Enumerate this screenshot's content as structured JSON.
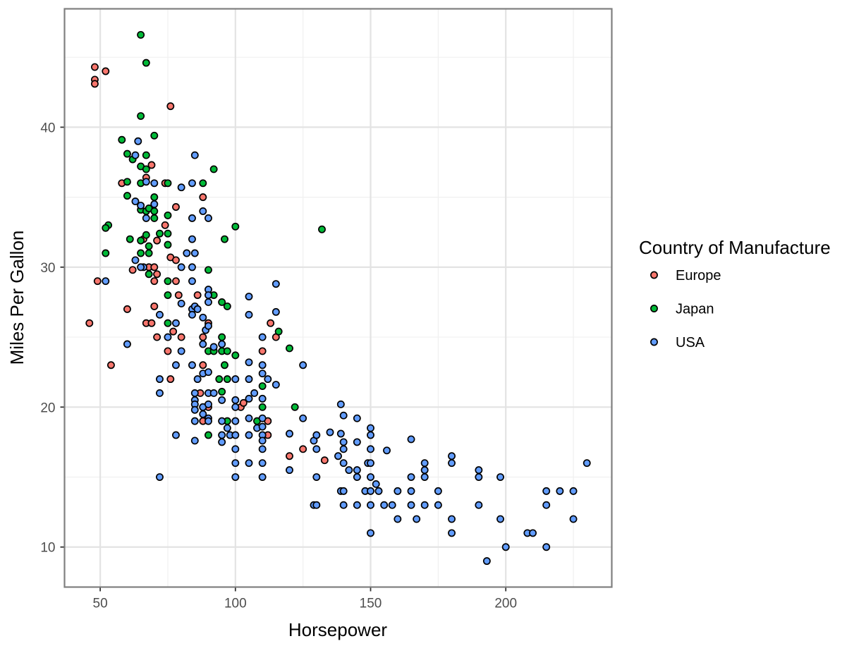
{
  "chart_data": {
    "type": "scatter",
    "title": "",
    "xlabel": "Horsepower",
    "ylabel": "Miles Per Gallon",
    "xlim": [
      36.8,
      239.2
    ],
    "ylim": [
      7.14,
      48.46
    ],
    "xticks": [
      50,
      100,
      150,
      200
    ],
    "yticks": [
      10,
      20,
      30,
      40
    ],
    "grid": true,
    "legend": {
      "title": "Country of Manufacture",
      "position": "right"
    },
    "series": [
      {
        "name": "Europe",
        "color": "#f8766d",
        "points": [
          [
            48,
            44.3
          ],
          [
            48,
            43.4
          ],
          [
            48,
            43.1
          ],
          [
            52,
            44.0
          ],
          [
            76,
            41.5
          ],
          [
            58,
            36.0
          ],
          [
            67,
            36.4
          ],
          [
            69,
            37.3
          ],
          [
            74,
            36.0
          ],
          [
            88,
            35.0
          ],
          [
            74,
            33.0
          ],
          [
            78,
            34.3
          ],
          [
            66,
            32.0
          ],
          [
            71,
            31.9
          ],
          [
            76,
            30.7
          ],
          [
            78,
            30.5
          ],
          [
            49,
            29.0
          ],
          [
            62,
            29.8
          ],
          [
            68,
            30.0
          ],
          [
            70,
            30.0
          ],
          [
            71,
            29.5
          ],
          [
            70,
            29.0
          ],
          [
            78,
            29.0
          ],
          [
            46,
            26.0
          ],
          [
            60,
            27.0
          ],
          [
            67,
            26.0
          ],
          [
            69,
            26.0
          ],
          [
            70,
            27.2
          ],
          [
            79,
            28.0
          ],
          [
            86,
            28.0
          ],
          [
            90,
            26.0
          ],
          [
            113,
            26.0
          ],
          [
            54,
            23.0
          ],
          [
            71,
            25.0
          ],
          [
            75,
            24.0
          ],
          [
            77,
            25.4
          ],
          [
            80,
            25.0
          ],
          [
            88,
            25.0
          ],
          [
            88,
            23.0
          ],
          [
            115,
            25.0
          ],
          [
            110,
            24.0
          ],
          [
            102,
            20.0
          ],
          [
            76,
            22.0
          ],
          [
            87,
            21.0
          ],
          [
            88,
            20.0
          ],
          [
            90,
            20.0
          ],
          [
            103,
            20.3
          ],
          [
            88,
            19.0
          ],
          [
            112,
            19.0
          ],
          [
            112,
            18.0
          ],
          [
            120,
            16.5
          ],
          [
            125,
            17.0
          ],
          [
            133,
            16.2
          ]
        ]
      },
      {
        "name": "Japan",
        "color": "#00ba38",
        "points": [
          [
            65,
            46.6
          ],
          [
            67,
            44.6
          ],
          [
            65,
            40.8
          ],
          [
            58,
            39.1
          ],
          [
            70,
            39.4
          ],
          [
            60,
            38.1
          ],
          [
            62,
            37.7
          ],
          [
            65,
            37.2
          ],
          [
            67,
            37.0
          ],
          [
            67,
            38.0
          ],
          [
            92,
            37.0
          ],
          [
            60,
            36.1
          ],
          [
            65,
            36.0
          ],
          [
            75,
            36.0
          ],
          [
            88,
            36.0
          ],
          [
            70,
            35.0
          ],
          [
            60,
            35.1
          ],
          [
            53,
            33.0
          ],
          [
            52,
            32.8
          ],
          [
            65,
            34.1
          ],
          [
            67,
            34.0
          ],
          [
            68,
            34.2
          ],
          [
            70,
            34.0
          ],
          [
            70,
            33.5
          ],
          [
            75,
            33.7
          ],
          [
            61,
            32.0
          ],
          [
            65,
            31.9
          ],
          [
            67,
            32.3
          ],
          [
            68,
            31.5
          ],
          [
            72,
            32.4
          ],
          [
            75,
            32.4
          ],
          [
            75,
            31.6
          ],
          [
            100,
            32.9
          ],
          [
            132,
            32.7
          ],
          [
            96,
            32.0
          ],
          [
            52,
            31.0
          ],
          [
            65,
            31.0
          ],
          [
            68,
            31.0
          ],
          [
            68,
            29.5
          ],
          [
            75,
            29.0
          ],
          [
            90,
            29.8
          ],
          [
            75,
            28.0
          ],
          [
            92,
            28.0
          ],
          [
            95,
            27.5
          ],
          [
            97,
            27.2
          ],
          [
            75,
            26.0
          ],
          [
            90,
            24.0
          ],
          [
            92,
            24.0
          ],
          [
            95,
            24.0
          ],
          [
            97,
            24.0
          ],
          [
            100,
            23.7
          ],
          [
            96,
            23.0
          ],
          [
            95,
            25.0
          ],
          [
            116,
            25.4
          ],
          [
            120,
            24.2
          ],
          [
            94,
            22.0
          ],
          [
            97,
            22.0
          ],
          [
            95,
            21.1
          ],
          [
            110,
            21.5
          ],
          [
            110,
            20.0
          ],
          [
            122,
            20.0
          ],
          [
            88,
            20.0
          ],
          [
            97,
            19.0
          ],
          [
            108,
            19.0
          ],
          [
            90,
            18.0
          ]
        ]
      },
      {
        "name": "USA",
        "color": "#619cff",
        "points": [
          [
            64,
            39.0
          ],
          [
            63,
            38.0
          ],
          [
            85,
            38.0
          ],
          [
            67,
            36.1
          ],
          [
            70,
            36.0
          ],
          [
            80,
            35.7
          ],
          [
            84,
            36.0
          ],
          [
            63,
            34.7
          ],
          [
            65,
            34.4
          ],
          [
            66,
            30.0
          ],
          [
            67,
            33.5
          ],
          [
            70,
            34.5
          ],
          [
            84,
            33.5
          ],
          [
            88,
            34.0
          ],
          [
            90,
            33.5
          ],
          [
            52,
            29.0
          ],
          [
            63,
            30.5
          ],
          [
            65,
            30.0
          ],
          [
            72,
            26.6
          ],
          [
            80,
            30.0
          ],
          [
            82,
            31.0
          ],
          [
            84,
            32.0
          ],
          [
            84,
            30.0
          ],
          [
            85,
            31.0
          ],
          [
            84,
            29.0
          ],
          [
            90,
            27.5
          ],
          [
            90,
            28.4
          ],
          [
            90,
            28.0
          ],
          [
            60,
            24.5
          ],
          [
            75,
            25.0
          ],
          [
            78,
            26.0
          ],
          [
            80,
            27.4
          ],
          [
            84,
            27.0
          ],
          [
            84,
            26.6
          ],
          [
            85,
            27.2
          ],
          [
            86,
            27.0
          ],
          [
            88,
            26.4
          ],
          [
            88,
            24.5
          ],
          [
            89,
            25.5
          ],
          [
            90,
            25.8
          ],
          [
            92,
            24.3
          ],
          [
            95,
            24.5
          ],
          [
            105,
            27.9
          ],
          [
            105,
            26.6
          ],
          [
            115,
            28.8
          ],
          [
            115,
            26.8
          ],
          [
            72,
            22.0
          ],
          [
            72,
            21.0
          ],
          [
            78,
            23.0
          ],
          [
            80,
            24.0
          ],
          [
            84,
            23.0
          ],
          [
            86,
            22.0
          ],
          [
            88,
            22.4
          ],
          [
            90,
            22.5
          ],
          [
            85,
            21.0
          ],
          [
            85,
            20.5
          ],
          [
            85,
            20.2
          ],
          [
            85,
            19.8
          ],
          [
            85,
            19.0
          ],
          [
            85,
            17.6
          ],
          [
            88,
            20.0
          ],
          [
            88,
            19.5
          ],
          [
            90,
            21.0
          ],
          [
            90,
            20.2
          ],
          [
            90,
            19.2
          ],
          [
            90,
            19.0
          ],
          [
            92,
            21.0
          ],
          [
            95,
            20.5
          ],
          [
            95,
            19.0
          ],
          [
            95,
            18.0
          ],
          [
            95,
            17.5
          ],
          [
            97,
            18.5
          ],
          [
            98,
            18.0
          ],
          [
            100,
            22.0
          ],
          [
            100,
            20.5
          ],
          [
            100,
            20.0
          ],
          [
            100,
            19.0
          ],
          [
            100,
            18.0
          ],
          [
            100,
            17.0
          ],
          [
            100,
            16.0
          ],
          [
            100,
            15.0
          ],
          [
            78,
            18.0
          ],
          [
            72,
            15.0
          ],
          [
            105,
            23.2
          ],
          [
            105,
            22.0
          ],
          [
            105,
            20.6
          ],
          [
            105,
            19.2
          ],
          [
            105,
            18.0
          ],
          [
            105,
            16.0
          ],
          [
            107,
            21.0
          ],
          [
            108,
            18.5
          ],
          [
            110,
            25.0
          ],
          [
            110,
            23.0
          ],
          [
            110,
            22.4
          ],
          [
            110,
            20.6
          ],
          [
            110,
            19.2
          ],
          [
            110,
            18.6
          ],
          [
            110,
            18.0
          ],
          [
            110,
            17.6
          ],
          [
            110,
            17.0
          ],
          [
            110,
            16.0
          ],
          [
            110,
            15.0
          ],
          [
            112,
            22.0
          ],
          [
            115,
            21.6
          ],
          [
            120,
            18.1
          ],
          [
            120,
            15.5
          ],
          [
            125,
            23.0
          ],
          [
            125,
            19.2
          ],
          [
            129,
            17.6
          ],
          [
            129,
            13.0
          ],
          [
            130,
            18.0
          ],
          [
            130,
            17.0
          ],
          [
            130,
            15.0
          ],
          [
            130,
            13.0
          ],
          [
            135,
            18.2
          ],
          [
            138,
            16.5
          ],
          [
            139,
            20.2
          ],
          [
            139,
            18.1
          ],
          [
            139,
            14.0
          ],
          [
            140,
            19.4
          ],
          [
            140,
            17.5
          ],
          [
            140,
            17.0
          ],
          [
            140,
            16.0
          ],
          [
            140,
            14.0
          ],
          [
            140,
            13.0
          ],
          [
            142,
            15.5
          ],
          [
            145,
            19.2
          ],
          [
            145,
            17.5
          ],
          [
            145,
            15.5
          ],
          [
            145,
            15.0
          ],
          [
            145,
            13.0
          ],
          [
            148,
            14.0
          ],
          [
            149,
            16.0
          ],
          [
            150,
            18.5
          ],
          [
            150,
            18.0
          ],
          [
            150,
            17.0
          ],
          [
            150,
            16.0
          ],
          [
            150,
            15.0
          ],
          [
            150,
            14.0
          ],
          [
            150,
            13.0
          ],
          [
            150,
            11.0
          ],
          [
            152,
            14.5
          ],
          [
            153,
            14.0
          ],
          [
            155,
            13.0
          ],
          [
            156,
            16.9
          ],
          [
            158,
            13.0
          ],
          [
            160,
            14.0
          ],
          [
            160,
            12.0
          ],
          [
            165,
            17.7
          ],
          [
            165,
            15.0
          ],
          [
            165,
            14.0
          ],
          [
            165,
            13.0
          ],
          [
            167,
            12.0
          ],
          [
            170,
            16.0
          ],
          [
            170,
            15.5
          ],
          [
            170,
            15.0
          ],
          [
            170,
            13.0
          ],
          [
            175,
            14.0
          ],
          [
            175,
            13.0
          ],
          [
            180,
            16.5
          ],
          [
            180,
            16.0
          ],
          [
            180,
            12.0
          ],
          [
            180,
            11.0
          ],
          [
            190,
            15.5
          ],
          [
            190,
            15.0
          ],
          [
            190,
            13.0
          ],
          [
            193,
            9.0
          ],
          [
            198,
            15.0
          ],
          [
            198,
            12.0
          ],
          [
            200,
            10.0
          ],
          [
            208,
            11.0
          ],
          [
            210,
            11.0
          ],
          [
            215,
            14.0
          ],
          [
            215,
            13.0
          ],
          [
            215,
            10.0
          ],
          [
            220,
            14.0
          ],
          [
            225,
            14.0
          ],
          [
            225,
            12.0
          ],
          [
            230,
            16.0
          ]
        ]
      }
    ]
  }
}
